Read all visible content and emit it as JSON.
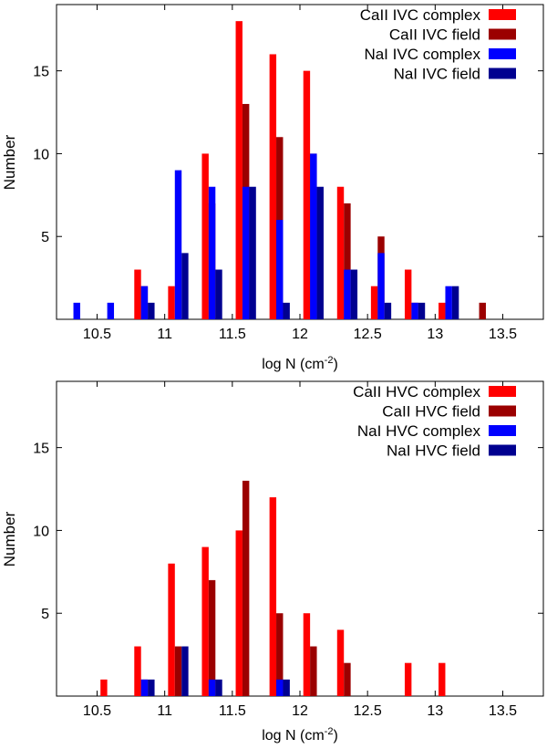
{
  "chart_data": [
    {
      "type": "bar",
      "xlabel": "log N (cm",
      "xlabel_sup": "-2",
      "xlabel_close": ")",
      "ylabel": "Number",
      "xlim": [
        10.2,
        13.8
      ],
      "ylim": [
        0,
        19
      ],
      "bin_width": 0.1,
      "x_ticks": [
        10.5,
        11,
        11.5,
        12,
        12.5,
        13,
        13.5
      ],
      "x_tick_labels": [
        "10.5",
        "11",
        "11.5",
        "12",
        "12.5",
        "13",
        "13.5"
      ],
      "y_ticks": [
        5,
        10,
        15
      ],
      "y_tick_labels": [
        "5",
        "10",
        "15"
      ],
      "legend_position": "top-right",
      "series": [
        {
          "name": "CaII IVC complex",
          "color": "#ff0000",
          "x": [
            10.8,
            11.05,
            11.3,
            11.55,
            11.8,
            12.05,
            12.3,
            12.55,
            12.8,
            13.05
          ],
          "values": [
            3,
            2,
            10,
            18,
            16,
            15,
            8,
            2,
            3,
            1
          ]
        },
        {
          "name": "CaII IVC field",
          "color": "#9b0000",
          "x": [
            10.85,
            11.35,
            11.6,
            11.85,
            12.1,
            12.35,
            12.6,
            12.85,
            13.35
          ],
          "values": [
            2,
            7,
            13,
            11,
            10,
            7,
            5,
            1,
            1
          ]
        },
        {
          "name": "NaI IVC complex",
          "color": "#0000ff",
          "x": [
            10.35,
            10.6,
            10.85,
            11.1,
            11.35,
            11.6,
            11.85,
            12.1,
            12.35,
            12.6,
            12.85,
            13.1
          ],
          "values": [
            1,
            1,
            2,
            9,
            8,
            8,
            6,
            10,
            3,
            4,
            1,
            2
          ]
        },
        {
          "name": "NaI IVC field",
          "color": "#000090",
          "x": [
            10.9,
            11.15,
            11.4,
            11.65,
            11.9,
            12.15,
            12.4,
            12.65,
            12.9,
            13.15
          ],
          "values": [
            1,
            4,
            3,
            8,
            1,
            8,
            3,
            1,
            1,
            2
          ]
        }
      ]
    },
    {
      "type": "bar",
      "xlabel": "log N (cm",
      "xlabel_sup": "-2",
      "xlabel_close": ")",
      "ylabel": "Number",
      "xlim": [
        10.2,
        13.8
      ],
      "ylim": [
        0,
        19
      ],
      "bin_width": 0.1,
      "x_ticks": [
        10.5,
        11,
        11.5,
        12,
        12.5,
        13,
        13.5
      ],
      "x_tick_labels": [
        "10.5",
        "11",
        "11.5",
        "12",
        "12.5",
        "13",
        "13.5"
      ],
      "y_ticks": [
        5,
        10,
        15
      ],
      "y_tick_labels": [
        "5",
        "10",
        "15"
      ],
      "legend_position": "top-right",
      "series": [
        {
          "name": "CaII HVC complex",
          "color": "#ff0000",
          "x": [
            10.55,
            10.8,
            11.05,
            11.3,
            11.55,
            11.8,
            12.05,
            12.3,
            12.8,
            13.05
          ],
          "values": [
            1,
            3,
            8,
            9,
            10,
            12,
            5,
            4,
            2,
            2
          ]
        },
        {
          "name": "CaII HVC field",
          "color": "#9b0000",
          "x": [
            10.85,
            11.1,
            11.35,
            11.6,
            11.85,
            12.1,
            12.35
          ],
          "values": [
            1,
            3,
            7,
            13,
            5,
            3,
            2
          ]
        },
        {
          "name": "NaI HVC complex",
          "color": "#0000ff",
          "x": [
            10.85,
            11.35,
            11.85
          ],
          "values": [
            1,
            1,
            1
          ]
        },
        {
          "name": "NaI HVC field",
          "color": "#000090",
          "x": [
            10.9,
            11.15,
            11.4,
            11.9
          ],
          "values": [
            1,
            3,
            1,
            1
          ]
        }
      ]
    }
  ]
}
